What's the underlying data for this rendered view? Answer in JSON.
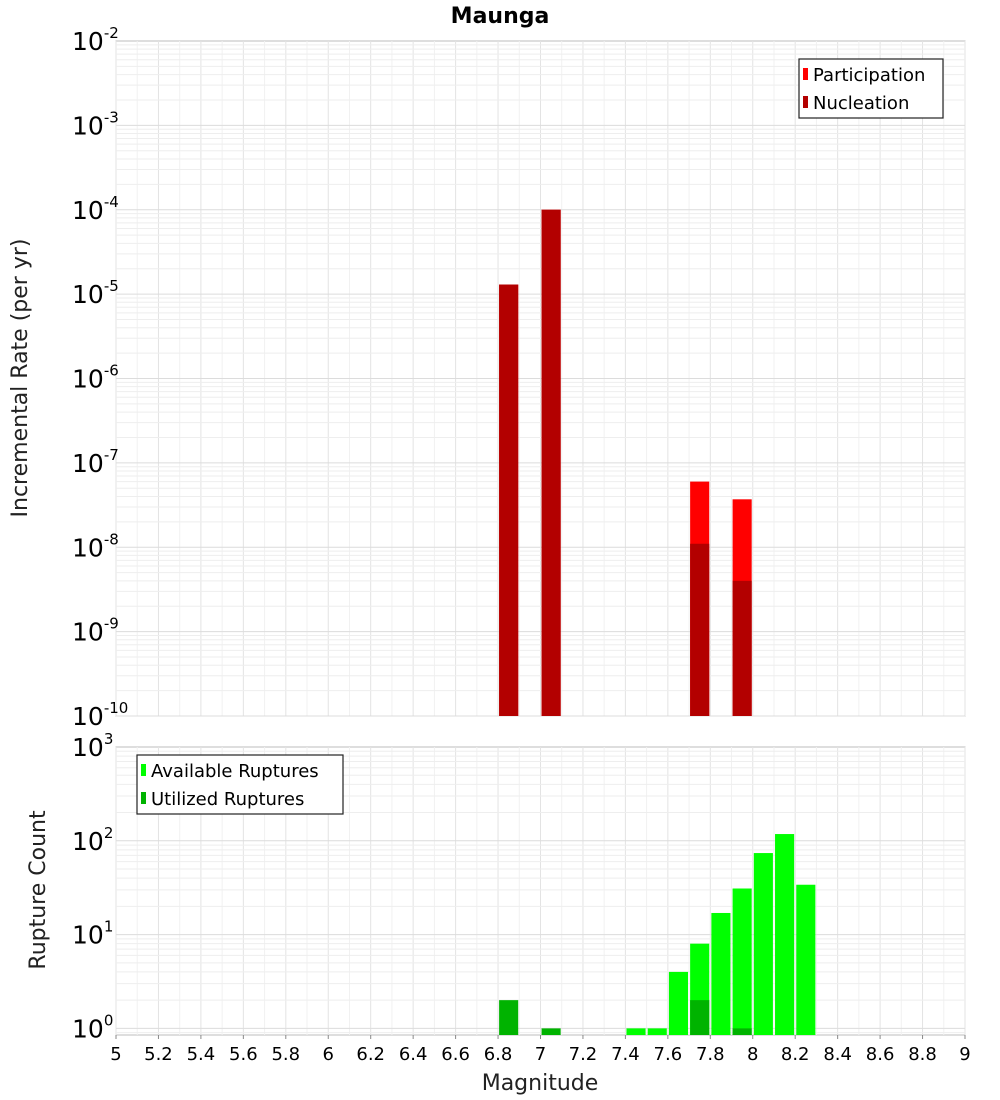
{
  "chart_data": [
    {
      "type": "bar",
      "title": "Maunga",
      "xlabel": "",
      "ylabel": "Incremental Rate (per yr)",
      "xlim": [
        5,
        9
      ],
      "yscale": "log",
      "ylim": [
        1e-10,
        0.01
      ],
      "bar_width": 0.09,
      "grid": true,
      "legend_position": "top-right",
      "series": [
        {
          "name": "Participation",
          "color": "#ff0000",
          "points": [
            {
              "x": 6.85,
              "y": 1.3e-05
            },
            {
              "x": 7.05,
              "y": 0.0001
            },
            {
              "x": 7.75,
              "y": 6e-08
            },
            {
              "x": 7.95,
              "y": 3.7e-08
            }
          ]
        },
        {
          "name": "Nucleation",
          "color": "#b30000",
          "points": [
            {
              "x": 6.85,
              "y": 1.3e-05
            },
            {
              "x": 7.05,
              "y": 0.0001
            },
            {
              "x": 7.75,
              "y": 1.1e-08
            },
            {
              "x": 7.95,
              "y": 4e-09
            }
          ]
        }
      ],
      "y_ticks": [
        {
          "base": "10",
          "exp": "-2"
        },
        {
          "base": "10",
          "exp": "-3"
        },
        {
          "base": "10",
          "exp": "-4"
        },
        {
          "base": "10",
          "exp": "-5"
        },
        {
          "base": "10",
          "exp": "-6"
        },
        {
          "base": "10",
          "exp": "-7"
        },
        {
          "base": "10",
          "exp": "-8"
        },
        {
          "base": "10",
          "exp": "-9"
        },
        {
          "base": "10",
          "exp": "-10"
        }
      ]
    },
    {
      "type": "bar",
      "title": "",
      "xlabel": "Magnitude",
      "ylabel": "Rupture Count",
      "xlim": [
        5,
        9
      ],
      "yscale": "log",
      "ylim": [
        0.85,
        1000
      ],
      "bar_width": 0.09,
      "grid": true,
      "legend_position": "top-left",
      "series": [
        {
          "name": "Available Ruptures",
          "color": "#00ff00",
          "points": [
            {
              "x": 7.45,
              "y": 1
            },
            {
              "x": 7.55,
              "y": 1
            },
            {
              "x": 7.65,
              "y": 4
            },
            {
              "x": 7.75,
              "y": 8
            },
            {
              "x": 7.85,
              "y": 17
            },
            {
              "x": 7.95,
              "y": 31
            },
            {
              "x": 8.05,
              "y": 74
            },
            {
              "x": 8.15,
              "y": 118
            },
            {
              "x": 8.25,
              "y": 34
            }
          ]
        },
        {
          "name": "Utilized Ruptures",
          "color": "#00b300",
          "points": [
            {
              "x": 6.85,
              "y": 2
            },
            {
              "x": 7.05,
              "y": 1
            },
            {
              "x": 7.75,
              "y": 2
            },
            {
              "x": 7.95,
              "y": 1
            }
          ]
        }
      ],
      "y_ticks": [
        {
          "base": "10",
          "exp": "3"
        },
        {
          "base": "10",
          "exp": "2"
        },
        {
          "base": "10",
          "exp": "1"
        },
        {
          "base": "10",
          "exp": "0"
        }
      ],
      "x_ticks": [
        "5",
        "5.2",
        "5.4",
        "5.6",
        "5.8",
        "6",
        "6.2",
        "6.4",
        "6.6",
        "6.8",
        "7",
        "7.2",
        "7.4",
        "7.6",
        "7.8",
        "8",
        "8.2",
        "8.4",
        "8.6",
        "8.8",
        "9"
      ]
    }
  ]
}
